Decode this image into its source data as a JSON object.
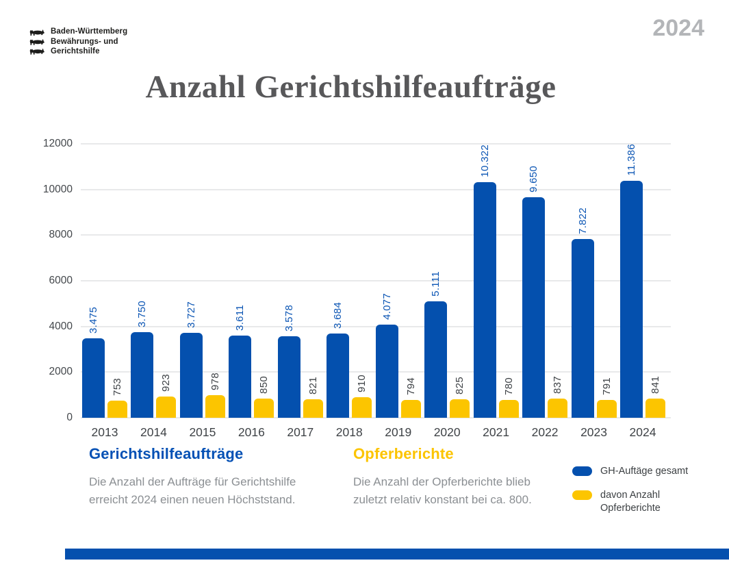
{
  "page": {
    "year_badge": "2024"
  },
  "logo": {
    "lines": [
      "Baden-Württemberg",
      "Bewährungs- und",
      "Gerichtshilfe"
    ]
  },
  "title": "Anzahl Gerichtshilfeaufträge",
  "chart_data": {
    "type": "bar",
    "title": "Anzahl Gerichtshilfeaufträge",
    "categories": [
      "2013",
      "2014",
      "2015",
      "2016",
      "2017",
      "2018",
      "2019",
      "2020",
      "2021",
      "2022",
      "2023",
      "2024"
    ],
    "series": [
      {
        "name": "GH-Auftäge gesamt",
        "color": "#0450ae",
        "values": [
          3475,
          3750,
          3727,
          3611,
          3578,
          3684,
          4077,
          5111,
          10322,
          9650,
          7822,
          11386
        ],
        "labels": [
          "3.475",
          "3.750",
          "3.727",
          "3.611",
          "3.578",
          "3.684",
          "4.077",
          "5.111",
          "10.322",
          "9.650",
          "7.822",
          "11.386"
        ]
      },
      {
        "name": "davon Anzahl Opferberichte",
        "color": "#fcc500",
        "values": [
          753,
          923,
          978,
          850,
          821,
          910,
          794,
          825,
          780,
          837,
          791,
          841
        ],
        "labels": [
          "753",
          "923",
          "978",
          "850",
          "821",
          "910",
          "794",
          "825",
          "780",
          "837",
          "791",
          "841"
        ]
      }
    ],
    "xlabel": "",
    "ylabel": "",
    "ylim": [
      0,
      12000
    ],
    "yticks": [
      0,
      2000,
      4000,
      6000,
      8000,
      10000,
      12000
    ],
    "grid": true,
    "bar_label_rotation": 90,
    "legend_position": "bottom-right"
  },
  "sections": {
    "left": {
      "heading": "Gerichtshilfeaufträge",
      "heading_color": "#0551b5",
      "body": "Die Anzahl der Aufträge für Gerichtshilfe erreicht 2024 einen neuen Höchststand."
    },
    "right": {
      "heading": "Opferberichte",
      "heading_color": "#fcc400",
      "body": "Die Anzahl der Opferberichte blieb zuletzt relativ konstant bei ca. 800."
    }
  },
  "legend": {
    "items": [
      {
        "label": "GH-Auftäge gesamt",
        "color": "#0450ae"
      },
      {
        "label": "davon Anzahl\nOpferberichte",
        "color": "#fcc500"
      }
    ]
  },
  "colors": {
    "accent_blue": "#0450ae",
    "accent_yellow": "#fcc500",
    "title_gray": "#58585a",
    "year_badge_gray": "#b3b5b8",
    "body_text_gray": "#8b8f93",
    "footer_bar": "#0450ae"
  }
}
